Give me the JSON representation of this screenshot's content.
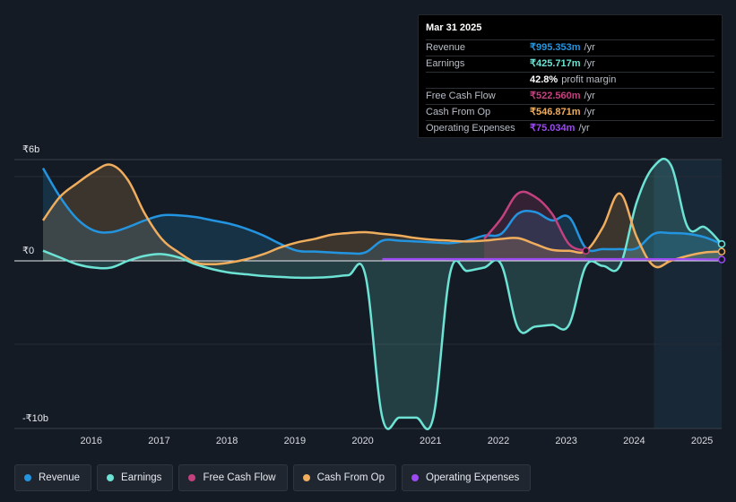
{
  "tooltip": {
    "date": "Mar 31 2025",
    "rows": [
      {
        "label": "Revenue",
        "value": "₹995.353m",
        "unit": "/yr",
        "color": "#2394df"
      },
      {
        "label": "Earnings",
        "value": "₹425.717m",
        "unit": "/yr",
        "color": "#6ce3d4"
      },
      {
        "label": "",
        "value": "42.8%",
        "unit": "profit margin",
        "color": "#ffffff"
      },
      {
        "label": "Free Cash Flow",
        "value": "₹522.560m",
        "unit": "/yr",
        "color": "#c4417f"
      },
      {
        "label": "Cash From Op",
        "value": "₹546.871m",
        "unit": "/yr",
        "color": "#f0ad5d"
      },
      {
        "label": "Operating Expenses",
        "value": "₹75.034m",
        "unit": "/yr",
        "color": "#9c4af2"
      }
    ]
  },
  "legend": [
    {
      "label": "Revenue",
      "color": "#2394df"
    },
    {
      "label": "Earnings",
      "color": "#6ce3d4"
    },
    {
      "label": "Free Cash Flow",
      "color": "#c4417f"
    },
    {
      "label": "Cash From Op",
      "color": "#f0ad5d"
    },
    {
      "label": "Operating Expenses",
      "color": "#9c4af2"
    }
  ],
  "chart_data": {
    "type": "area",
    "title": "",
    "ylabel": "INR",
    "y_unit": "billions",
    "ylim": [
      -10,
      6
    ],
    "y_tick_labels": [
      {
        "value": 6,
        "label": "₹6b"
      },
      {
        "value": 0,
        "label": "₹0"
      },
      {
        "value": -10,
        "label": "-₹10b"
      }
    ],
    "xlim": [
      2015.25,
      2025.25
    ],
    "x_ticks": [
      2016,
      2017,
      2018,
      2019,
      2020,
      2021,
      2022,
      2023,
      2024,
      2025
    ],
    "x_tick_labels": [
      "2016",
      "2017",
      "2018",
      "2019",
      "2020",
      "2021",
      "2022",
      "2023",
      "2024",
      "2025"
    ],
    "future_shade_start": 2024.25,
    "series": [
      {
        "name": "Revenue",
        "color": "#2394df",
        "fill": true,
        "x": [
          2015.25,
          2015.5,
          2015.75,
          2016.0,
          2016.25,
          2016.5,
          2016.75,
          2017.0,
          2017.25,
          2017.5,
          2017.75,
          2018.0,
          2018.25,
          2018.5,
          2018.75,
          2019.0,
          2019.25,
          2019.5,
          2019.75,
          2020.0,
          2020.25,
          2020.5,
          2020.75,
          2021.0,
          2021.25,
          2021.5,
          2021.75,
          2022.0,
          2022.25,
          2022.5,
          2022.75,
          2023.0,
          2023.25,
          2023.5,
          2023.75,
          2024.0,
          2024.25,
          2024.5,
          2024.75,
          2025.0,
          2025.25
        ],
        "values": [
          5.5,
          3.8,
          2.5,
          1.8,
          1.7,
          2.0,
          2.4,
          2.7,
          2.7,
          2.6,
          2.4,
          2.2,
          1.9,
          1.5,
          1.0,
          0.6,
          0.55,
          0.5,
          0.45,
          0.5,
          1.2,
          1.2,
          1.15,
          1.1,
          1.05,
          1.2,
          1.5,
          1.6,
          2.8,
          2.9,
          2.4,
          2.6,
          0.75,
          0.7,
          0.7,
          0.75,
          1.6,
          1.65,
          1.6,
          1.4,
          1.0
        ]
      },
      {
        "name": "Earnings",
        "color": "#6ce3d4",
        "fill": true,
        "x": [
          2015.25,
          2015.5,
          2015.75,
          2016.0,
          2016.25,
          2016.5,
          2016.75,
          2017.0,
          2017.25,
          2017.5,
          2017.75,
          2018.0,
          2018.25,
          2018.5,
          2018.75,
          2019.0,
          2019.25,
          2019.5,
          2019.75,
          2020.0,
          2020.25,
          2020.5,
          2020.75,
          2021.0,
          2021.25,
          2021.5,
          2021.75,
          2022.0,
          2022.25,
          2022.5,
          2022.75,
          2023.0,
          2023.25,
          2023.5,
          2023.75,
          2024.0,
          2024.25,
          2024.5,
          2024.75,
          2025.0,
          2025.25
        ],
        "values": [
          0.6,
          0.2,
          -0.2,
          -0.4,
          -0.4,
          0.0,
          0.3,
          0.4,
          0.2,
          -0.2,
          -0.5,
          -0.7,
          -0.8,
          -0.9,
          -0.95,
          -1.0,
          -1.0,
          -0.95,
          -0.85,
          -0.85,
          -9.3,
          -9.3,
          -9.3,
          -9.3,
          -0.7,
          -0.6,
          -0.4,
          -0.2,
          -4.0,
          -3.9,
          -3.8,
          -3.8,
          -0.3,
          -0.3,
          -0.3,
          3.5,
          5.6,
          5.7,
          2.0,
          2.0,
          1.0
        ]
      },
      {
        "name": "Free Cash Flow",
        "color": "#c4417f",
        "fill": true,
        "x": [
          2021.75,
          2022.0,
          2022.25,
          2022.5,
          2022.75,
          2023.0,
          2023.25
        ],
        "values": [
          1.3,
          2.5,
          4.0,
          3.8,
          2.8,
          1.0,
          0.6
        ]
      },
      {
        "name": "Cash From Op",
        "color": "#f0ad5d",
        "fill": true,
        "x": [
          2015.25,
          2015.5,
          2015.75,
          2016.0,
          2016.25,
          2016.5,
          2016.75,
          2017.0,
          2017.25,
          2017.5,
          2017.75,
          2018.0,
          2018.25,
          2018.5,
          2018.75,
          2019.0,
          2019.25,
          2019.5,
          2019.75,
          2020.0,
          2020.25,
          2020.5,
          2020.75,
          2021.0,
          2021.25,
          2021.5,
          2021.75,
          2022.0,
          2022.25,
          2022.5,
          2022.75,
          2023.0,
          2023.25,
          2023.5,
          2023.75,
          2024.0,
          2024.25,
          2024.5,
          2024.75,
          2025.0,
          2025.25
        ],
        "values": [
          2.4,
          3.8,
          4.6,
          5.3,
          5.7,
          4.8,
          2.8,
          1.3,
          0.5,
          -0.1,
          -0.2,
          -0.1,
          0.1,
          0.4,
          0.8,
          1.1,
          1.3,
          1.55,
          1.65,
          1.7,
          1.6,
          1.5,
          1.35,
          1.25,
          1.2,
          1.15,
          1.2,
          1.3,
          1.35,
          1.0,
          0.65,
          0.6,
          0.6,
          2.0,
          4.0,
          1.4,
          -0.3,
          0.0,
          0.3,
          0.5,
          0.55
        ]
      },
      {
        "name": "Operating Expenses",
        "color": "#9c4af2",
        "fill": false,
        "x": [
          2020.25,
          2021.0,
          2022.0,
          2023.0,
          2024.0,
          2025.25
        ],
        "values": [
          0.1,
          0.1,
          0.1,
          0.1,
          0.1,
          0.08
        ]
      }
    ]
  }
}
